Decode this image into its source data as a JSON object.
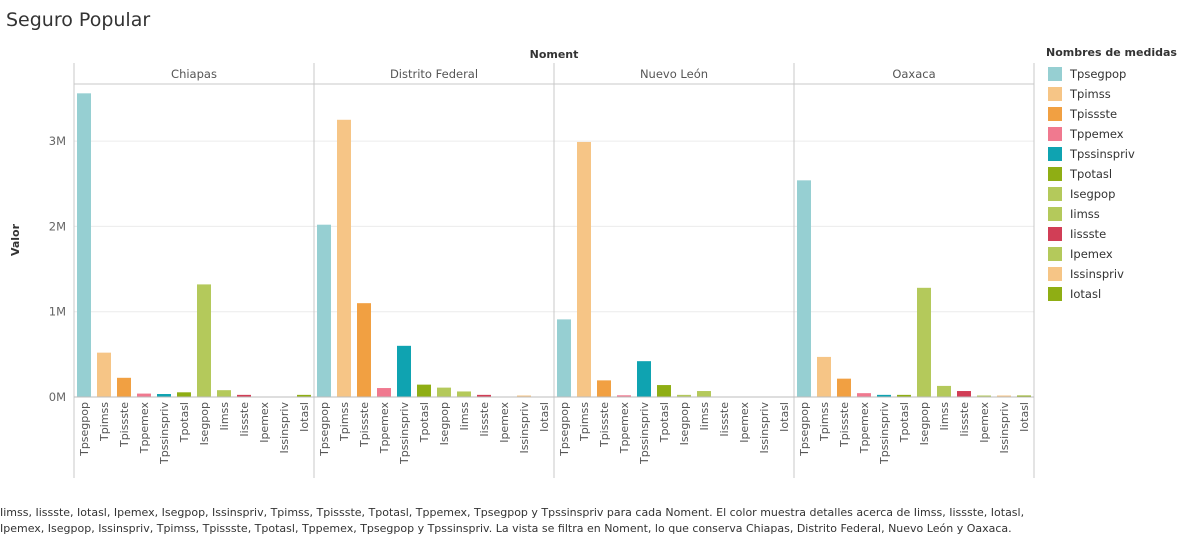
{
  "title": "Seguro Popular",
  "caption": "Iimss, Iissste, Iotasl, Ipemex, Isegpop, Issinspriv, Tpimss, Tpissste, Tpotasl, Tppemex, Tpsegpop y Tpssinspriv para cada Noment.  El color muestra detalles acerca de Iimss, Iissste, Iotasl, Ipemex, Isegpop, Issinspriv, Tpimss, Tpissste, Tpotasl, Tppemex, Tpsegpop y Tpssinspriv. La vista se filtra en Noment, lo que conserva Chiapas, Distrito Federal, Nuevo León y Oaxaca.",
  "legend": {
    "title": "Nombres de medidas",
    "items": [
      {
        "label": "Tpsegpop",
        "color": "#96cfd2"
      },
      {
        "label": "Tpimss",
        "color": "#f6c586"
      },
      {
        "label": "Tpissste",
        "color": "#f1a042"
      },
      {
        "label": "Tppemex",
        "color": "#f0798f"
      },
      {
        "label": "Tpssinspriv",
        "color": "#0fa3b1"
      },
      {
        "label": "Tpotasl",
        "color": "#8fae14"
      },
      {
        "label": "Isegpop",
        "color": "#b4c95b"
      },
      {
        "label": "Iimss",
        "color": "#b4c95b"
      },
      {
        "label": "Iissste",
        "color": "#d13e56"
      },
      {
        "label": "Ipemex",
        "color": "#b4c95b"
      },
      {
        "label": "Issinspriv",
        "color": "#f6c586"
      },
      {
        "label": "Iotasl",
        "color": "#8fae14"
      }
    ]
  },
  "chart_data": {
    "type": "bar",
    "title": "Seguro Popular",
    "column_header": "Noment",
    "ylabel": "Valor",
    "yticks": [
      {
        "value": 0,
        "label": "0M"
      },
      {
        "value": 1000000,
        "label": "1M"
      },
      {
        "value": 2000000,
        "label": "2M"
      },
      {
        "value": 3000000,
        "label": "3M"
      }
    ],
    "ylim": [
      0,
      3800000
    ],
    "grid": true,
    "legend_position": "right",
    "categories": [
      "Tpsegpop",
      "Tpimss",
      "Tpissste",
      "Tppemex",
      "Tpssinspriv",
      "Tpotasl",
      "Isegpop",
      "Iimss",
      "Iissste",
      "Ipemex",
      "Issinspriv",
      "Iotasl"
    ],
    "category_colors": [
      "#96cfd2",
      "#f6c586",
      "#f1a042",
      "#f0798f",
      "#0fa3b1",
      "#8fae14",
      "#b4c95b",
      "#b4c95b",
      "#d13e56",
      "#b4c95b",
      "#f6c586",
      "#8fae14"
    ],
    "panels": [
      {
        "name": "Chiapas",
        "values": [
          3560000,
          520000,
          225000,
          40000,
          35000,
          55000,
          1320000,
          80000,
          25000,
          0,
          0,
          25000
        ]
      },
      {
        "name": "Distrito Federal",
        "values": [
          2020000,
          3250000,
          1100000,
          105000,
          600000,
          145000,
          110000,
          65000,
          25000,
          0,
          10000,
          0
        ]
      },
      {
        "name": "Nuevo León",
        "values": [
          910000,
          2990000,
          195000,
          20000,
          420000,
          140000,
          25000,
          70000,
          0,
          0,
          0,
          0
        ]
      },
      {
        "name": "Oaxaca",
        "values": [
          2540000,
          470000,
          215000,
          45000,
          25000,
          25000,
          1280000,
          130000,
          70000,
          10000,
          10000,
          15000
        ]
      }
    ]
  }
}
